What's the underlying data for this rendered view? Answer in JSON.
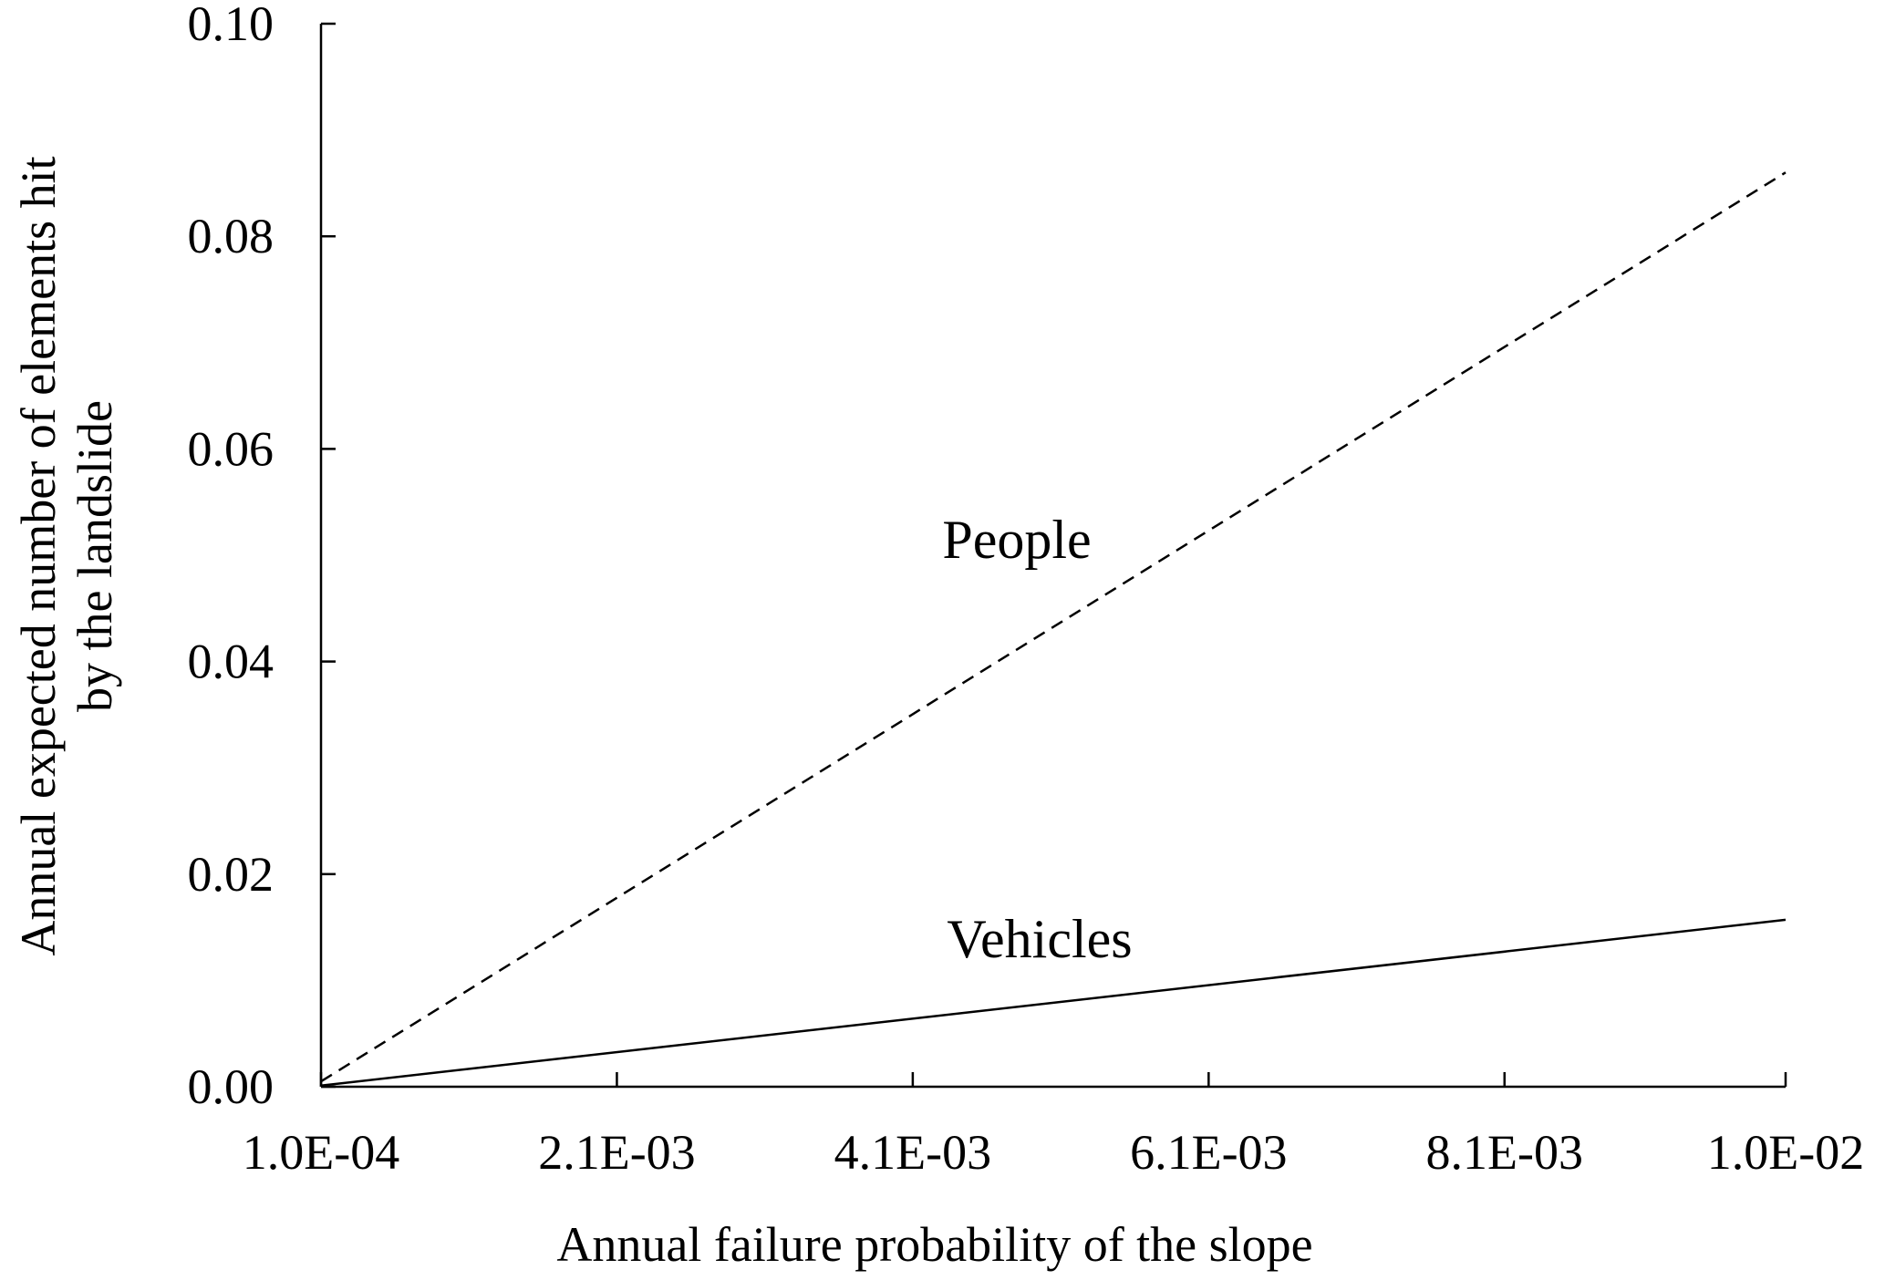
{
  "chart_data": {
    "type": "line",
    "title": "",
    "xlabel": "Annual failure probability of the slope",
    "ylabel_lines": [
      "Annual expected number of elements hit",
      "by the landslide"
    ],
    "xlim": [
      0.0001,
      0.01
    ],
    "ylim": [
      0,
      0.1
    ],
    "x_ticks": [
      0.0001,
      0.0021,
      0.0041,
      0.0061,
      0.0081,
      0.01
    ],
    "x_tick_labels": [
      "1.0E-04",
      "2.1E-03",
      "4.1E-03",
      "6.1E-03",
      "8.1E-03",
      "1.0E-02"
    ],
    "y_ticks": [
      0,
      0.02,
      0.04,
      0.06,
      0.08,
      0.1
    ],
    "y_tick_labels": [
      "0.00",
      "0.02",
      "0.04",
      "0.06",
      "0.08",
      "0.10"
    ],
    "grid": false,
    "legend": "none",
    "series": [
      {
        "name": "People",
        "style": "dashed",
        "color": "#000000",
        "x": [
          0.0001,
          0.01
        ],
        "y": [
          0.0005,
          0.086
        ]
      },
      {
        "name": "Vehicles",
        "style": "solid",
        "color": "#000000",
        "x": [
          0.0001,
          0.01
        ],
        "y": [
          0.0001,
          0.0157
        ]
      }
    ]
  }
}
